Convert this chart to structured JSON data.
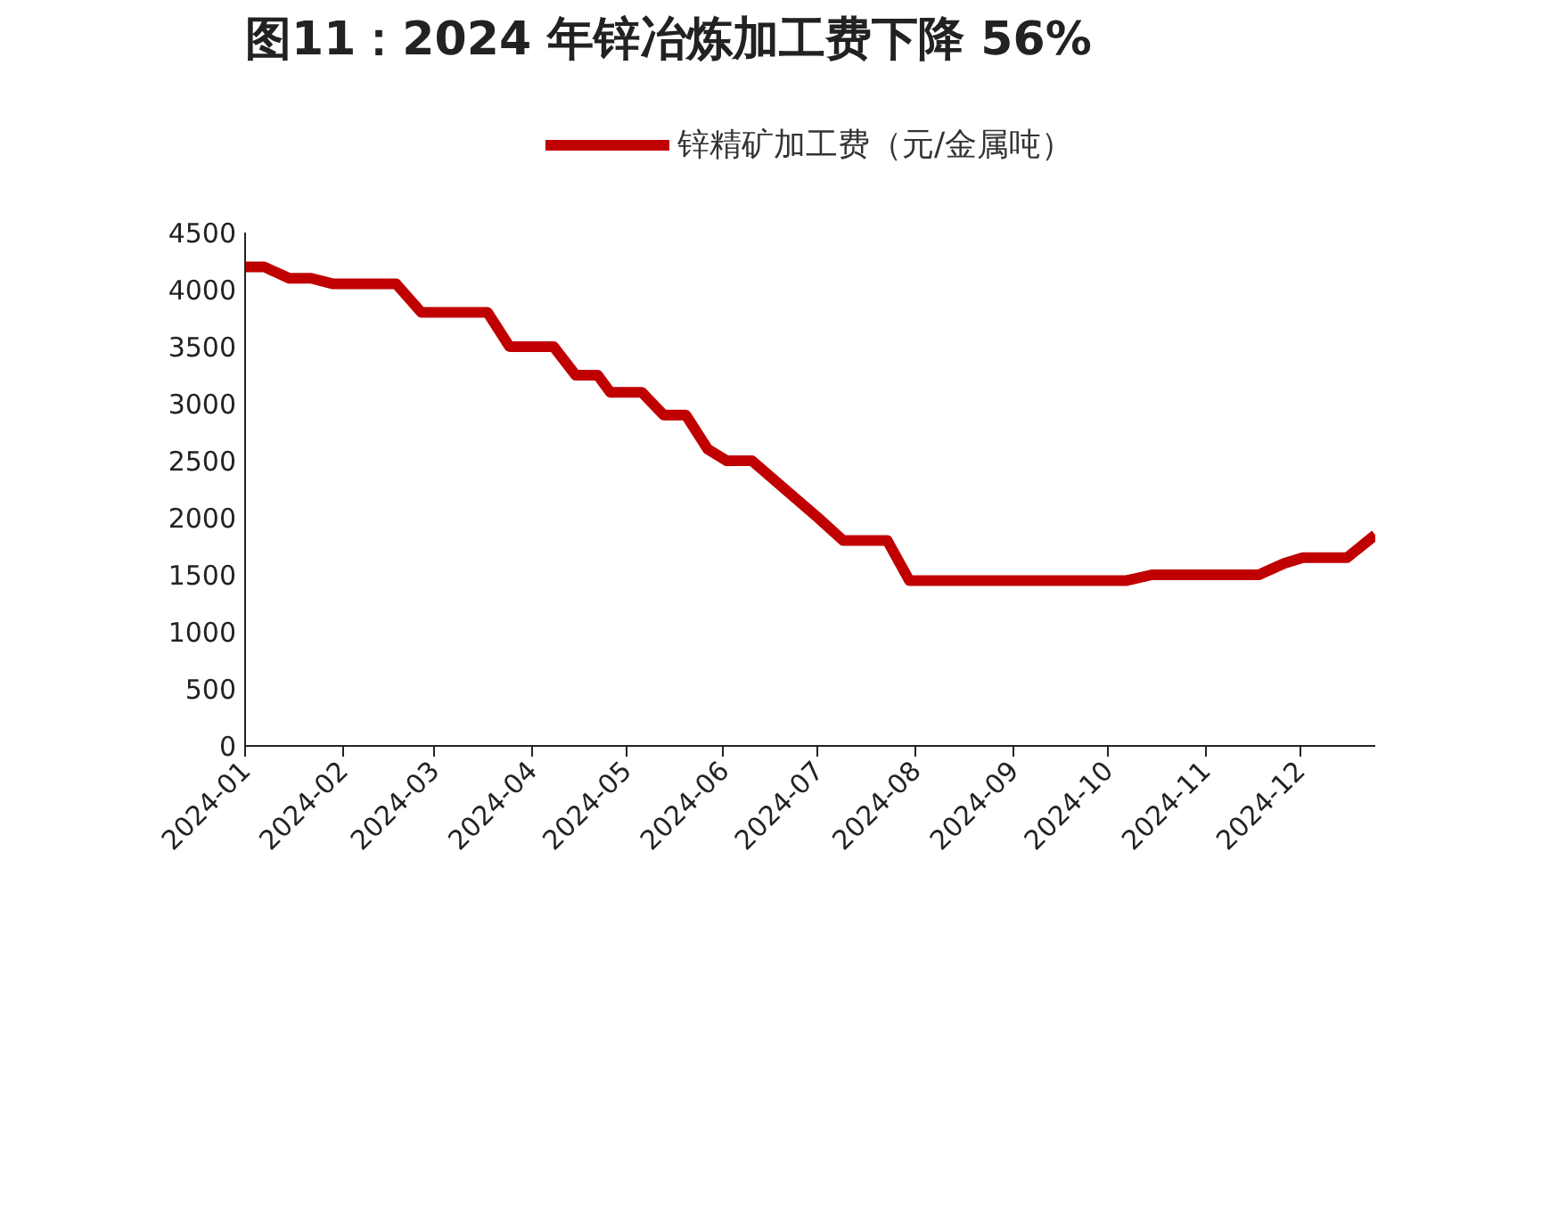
{
  "chart_data": {
    "type": "line",
    "title": "图11：2024 年锌冶炼加工费下降 56%",
    "x": [
      "2024-01-01",
      "2024-01-07",
      "2024-01-15",
      "2024-01-22",
      "2024-01-29",
      "2024-02-18",
      "2024-02-26",
      "2024-03-18",
      "2024-03-25",
      "2024-04-08",
      "2024-04-15",
      "2024-04-22",
      "2024-04-26",
      "2024-05-06",
      "2024-05-13",
      "2024-05-20",
      "2024-05-27",
      "2024-06-02",
      "2024-06-10",
      "2024-07-01",
      "2024-07-09",
      "2024-07-23",
      "2024-07-30",
      "2024-10-07",
      "2024-10-15",
      "2024-11-18",
      "2024-11-26",
      "2024-12-02",
      "2024-12-16",
      "2024-12-25"
    ],
    "series": [
      {
        "name": "锌精矿加工费（元/金属吨）",
        "color": "#c00000",
        "values": [
          4200,
          4200,
          4100,
          4100,
          4050,
          4050,
          3800,
          3800,
          3500,
          3500,
          3250,
          3250,
          3100,
          3100,
          2900,
          2900,
          2600,
          2500,
          2500,
          2000,
          1800,
          1800,
          1450,
          1450,
          1500,
          1500,
          1600,
          1650,
          1650,
          1850
        ]
      }
    ],
    "xlim": [
      "2024-01-01",
      "2024-12-25"
    ],
    "xticks": [
      "2024-01",
      "2024-02",
      "2024-03",
      "2024-04",
      "2024-05",
      "2024-06",
      "2024-07",
      "2024-08",
      "2024-09",
      "2024-10",
      "2024-11",
      "2024-12"
    ],
    "ylim": [
      0,
      4500
    ],
    "yticks": [
      0,
      500,
      1000,
      1500,
      2000,
      2500,
      3000,
      3500,
      4000,
      4500
    ],
    "grid": false,
    "legend": "top",
    "marker": "none",
    "line_style": "solid"
  }
}
